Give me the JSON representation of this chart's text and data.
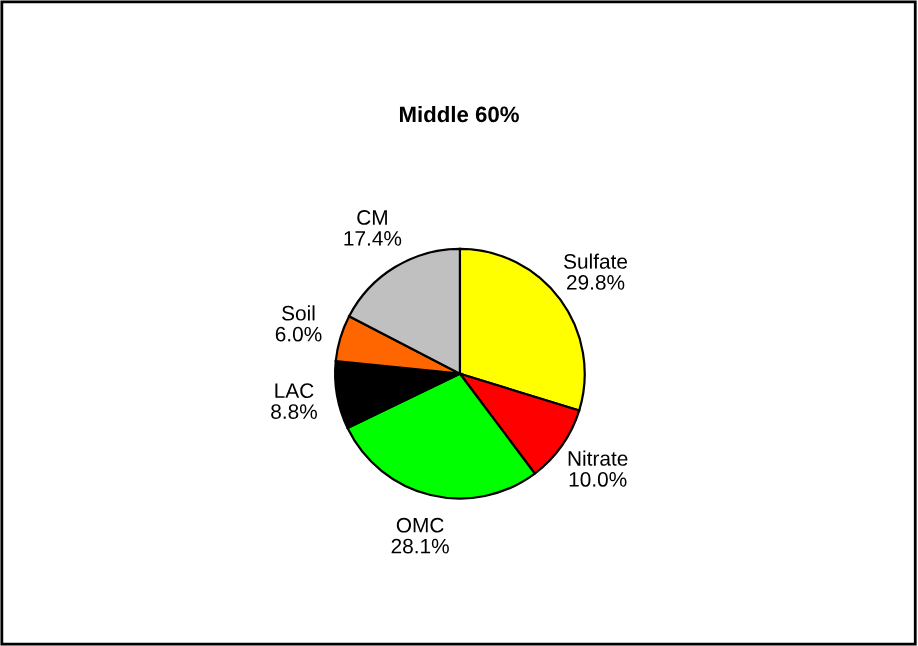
{
  "chart_data": {
    "type": "pie",
    "title": "Middle 60%",
    "categories": [
      "Sulfate",
      "Nitrate",
      "OMC",
      "LAC",
      "Soil",
      "CM"
    ],
    "values": [
      29.8,
      10.0,
      28.1,
      8.8,
      6.0,
      17.4
    ],
    "value_labels": [
      "29.8%",
      "10.0%",
      "28.1%",
      "8.8%",
      "6.0%",
      "17.4%"
    ],
    "colors": [
      "#ffff00",
      "#ff0000",
      "#00ff00",
      "#000000",
      "#ff6600",
      "#c0c0c0"
    ],
    "legend": false
  }
}
